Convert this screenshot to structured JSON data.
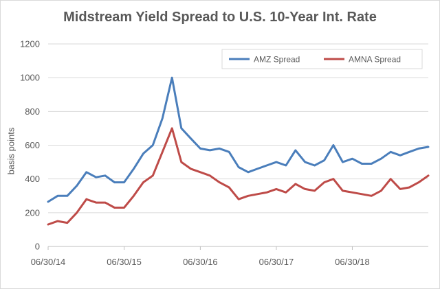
{
  "chart_data": {
    "type": "line",
    "title": "Midstream Yield Spread to U.S. 10-Year Int. Rate",
    "xlabel": "",
    "ylabel": "basis points",
    "ylim": [
      0,
      1200
    ],
    "yticks": [
      "0",
      "200",
      "400",
      "600",
      "800",
      "1000",
      "1200"
    ],
    "xticks": [
      "06/30/14",
      "06/30/15",
      "06/30/16",
      "06/30/17",
      "06/30/18"
    ],
    "xlim": [
      "06/30/14",
      "06/30/19"
    ],
    "grid": "horizontal",
    "legend": "top-right",
    "x": [
      "06/30/14",
      "08/15/14",
      "09/30/14",
      "11/15/14",
      "12/31/14",
      "02/15/15",
      "03/31/15",
      "05/15/15",
      "06/30/15",
      "08/15/15",
      "09/30/15",
      "11/15/15",
      "12/31/15",
      "02/15/16",
      "03/31/16",
      "05/15/16",
      "06/30/16",
      "08/15/16",
      "09/30/16",
      "11/15/16",
      "12/31/16",
      "02/15/17",
      "03/31/17",
      "05/15/17",
      "06/30/17",
      "08/15/17",
      "09/30/17",
      "11/15/17",
      "12/31/17",
      "02/15/18",
      "03/31/18",
      "05/15/18",
      "06/30/18",
      "08/15/18",
      "09/30/18",
      "11/15/18",
      "12/31/18",
      "02/15/19",
      "03/31/19",
      "05/15/19",
      "06/30/19"
    ],
    "series": [
      {
        "name": "AMZ Spread",
        "color": "#4a7ebb",
        "values": [
          265,
          300,
          300,
          360,
          440,
          410,
          420,
          380,
          380,
          460,
          550,
          600,
          760,
          1000,
          700,
          640,
          580,
          570,
          580,
          560,
          470,
          440,
          460,
          480,
          500,
          480,
          570,
          500,
          480,
          510,
          600,
          500,
          520,
          490,
          490,
          520,
          560,
          540,
          560,
          580,
          590
        ]
      },
      {
        "name": "AMNA Spread",
        "color": "#be4b48",
        "values": [
          130,
          150,
          140,
          200,
          280,
          260,
          260,
          230,
          230,
          300,
          380,
          420,
          560,
          700,
          500,
          460,
          440,
          420,
          380,
          350,
          280,
          300,
          310,
          320,
          340,
          320,
          370,
          340,
          330,
          380,
          400,
          330,
          320,
          310,
          300,
          330,
          400,
          340,
          350,
          380,
          420
        ]
      }
    ]
  }
}
